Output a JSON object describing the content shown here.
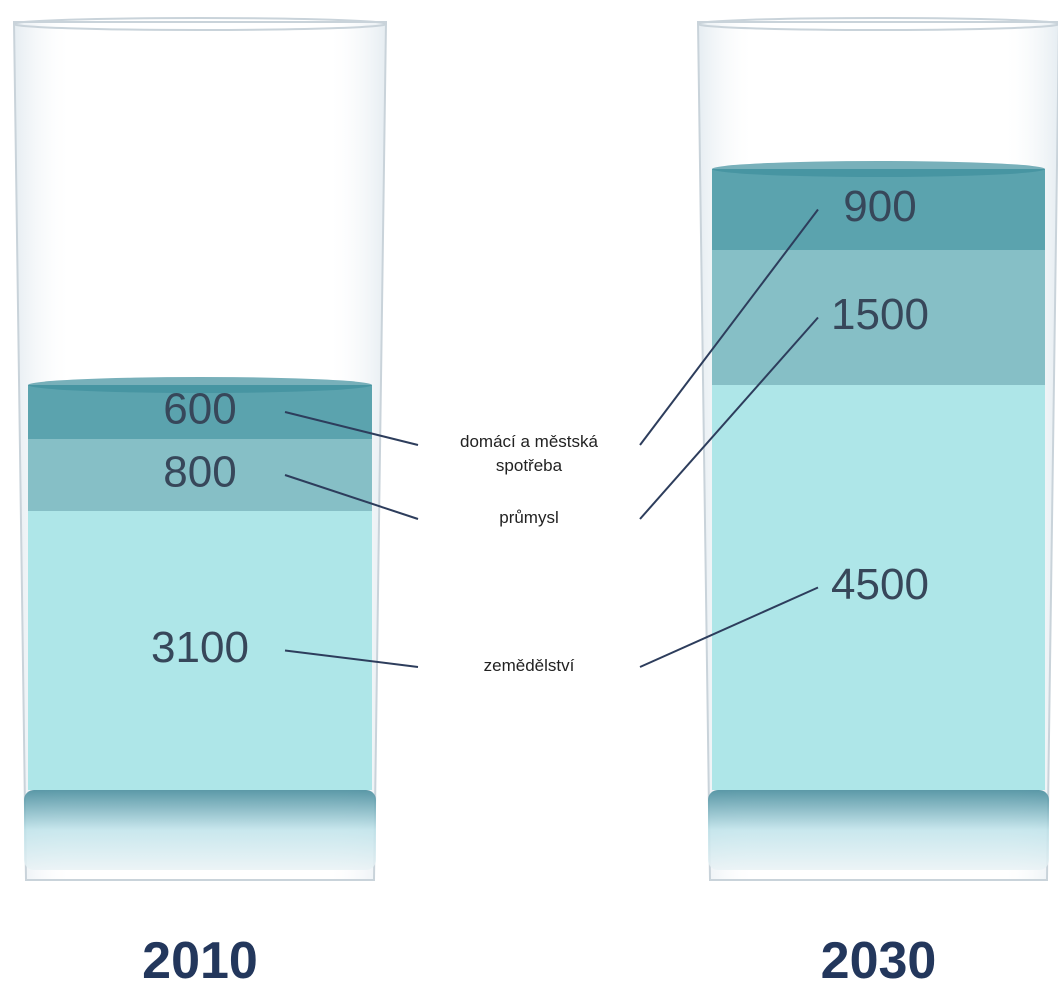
{
  "chart_data": {
    "type": "bar",
    "stacked": true,
    "categories": [
      "2010",
      "2030"
    ],
    "series": [
      {
        "name": "zemědělství",
        "color": "#aee6e8",
        "values": [
          3100,
          4500
        ]
      },
      {
        "name": "průmysl",
        "color": "#86bfc6",
        "values": [
          800,
          1500
        ]
      },
      {
        "name": "domácí a městská spotřeba",
        "color": "#5ba3ae",
        "values": [
          600,
          900
        ]
      }
    ]
  }
}
